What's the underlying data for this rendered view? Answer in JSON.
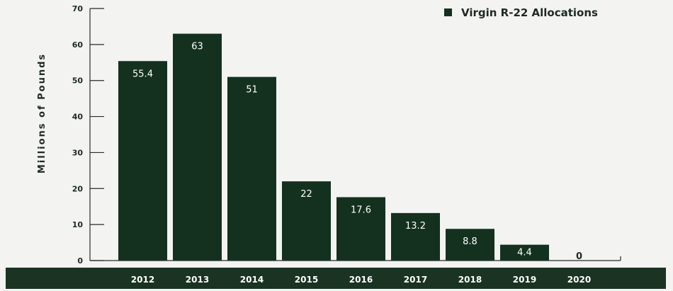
{
  "chart_data": {
    "type": "bar",
    "ylabel": "Millions of Pounds",
    "categories": [
      "2012",
      "2013",
      "2014",
      "2015",
      "2016",
      "2017",
      "2018",
      "2019",
      "2020"
    ],
    "series": [
      {
        "name": "Virgin R-22 Allocations",
        "values": [
          55.4,
          63,
          51,
          22,
          17.6,
          13.2,
          8.8,
          4.4,
          0
        ]
      }
    ],
    "value_labels": [
      "55.4",
      "63",
      "51",
      "22",
      "17.6",
      "13.2",
      "8.8",
      "4.4",
      "0"
    ],
    "ylim": [
      0,
      70
    ],
    "yticks": [
      0,
      10,
      20,
      30,
      40,
      50,
      60,
      70
    ],
    "legend_position": "top-right",
    "grid": false,
    "colors": {
      "bar": "#14311f",
      "band": "#1a3322",
      "background": "#f3f3f1"
    }
  }
}
